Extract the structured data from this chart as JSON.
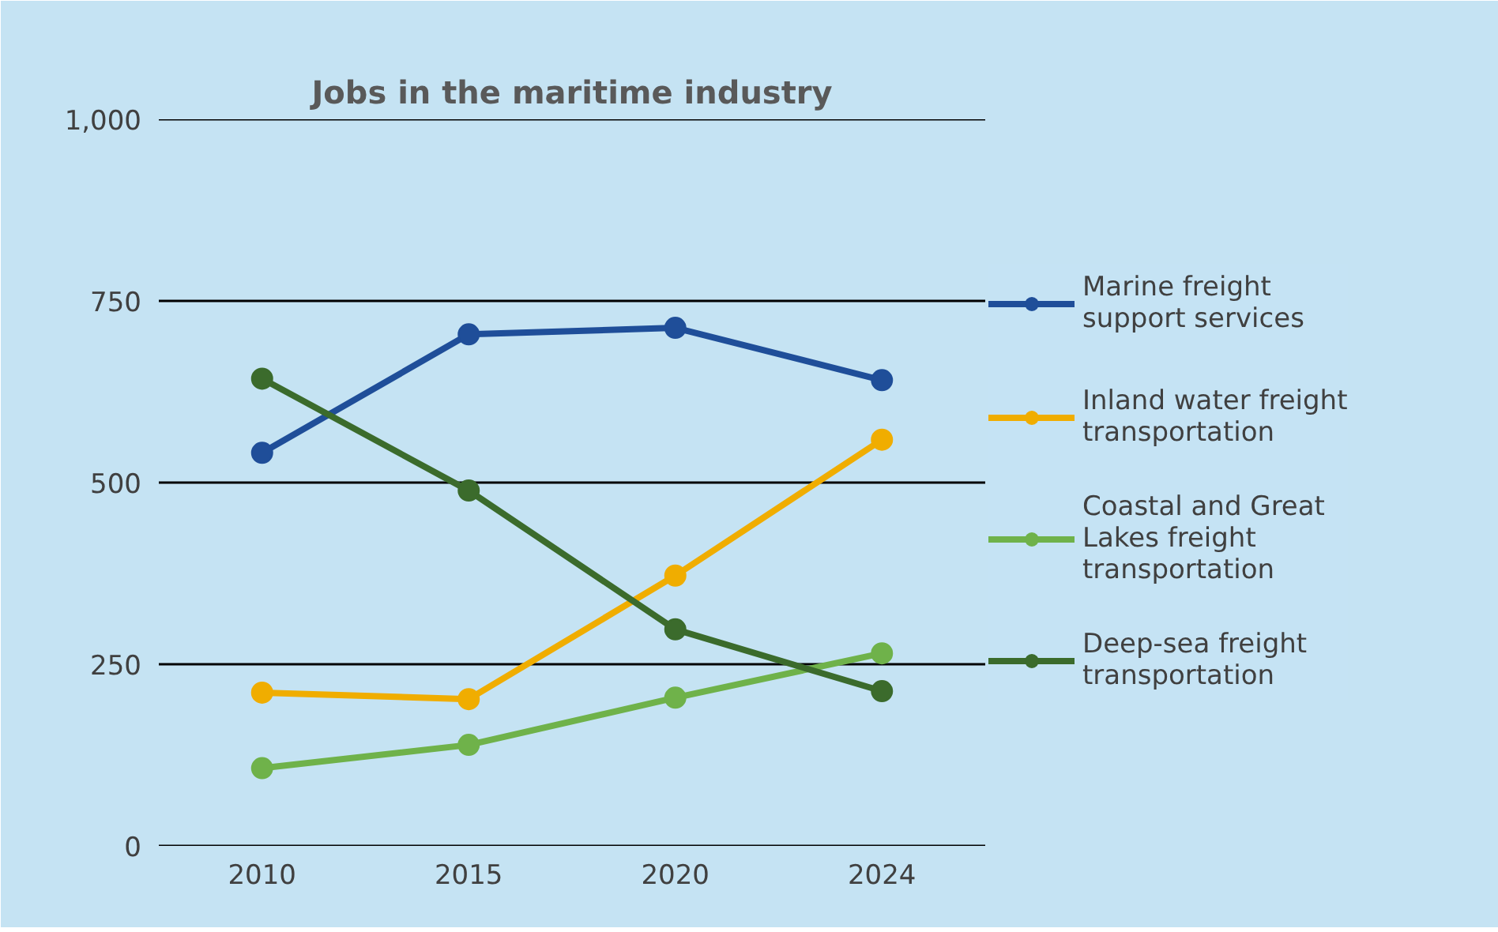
{
  "chart_data": {
    "type": "line",
    "title": "Jobs in the maritime industry",
    "categories": [
      "2010",
      "2015",
      "2020",
      "2024"
    ],
    "series": [
      {
        "name": "Marine freight support services",
        "color": "#1f4e99",
        "values": [
          541,
          704,
          713,
          641
        ]
      },
      {
        "name": "Inland water freight transportation",
        "color": "#f0ad00",
        "values": [
          211,
          202,
          372,
          559
        ]
      },
      {
        "name": "Coastal and Great Lakes freight transportation",
        "color": "#6fb24a",
        "values": [
          107,
          139,
          204,
          265
        ]
      },
      {
        "name": "Deep-sea freight transportation",
        "color": "#3b6b2c",
        "values": [
          643,
          489,
          298,
          213
        ]
      }
    ],
    "ylim": [
      0,
      1000
    ],
    "yticks": [
      0,
      {
        "value": 250,
        "label": "250"
      },
      {
        "value": 500,
        "label": "500"
      },
      {
        "value": 750,
        "label": "750"
      },
      {
        "value": 1000,
        "label": "1,000"
      }
    ],
    "grid": "y",
    "legend": "right",
    "marker": "circle",
    "line_style": "solid"
  }
}
